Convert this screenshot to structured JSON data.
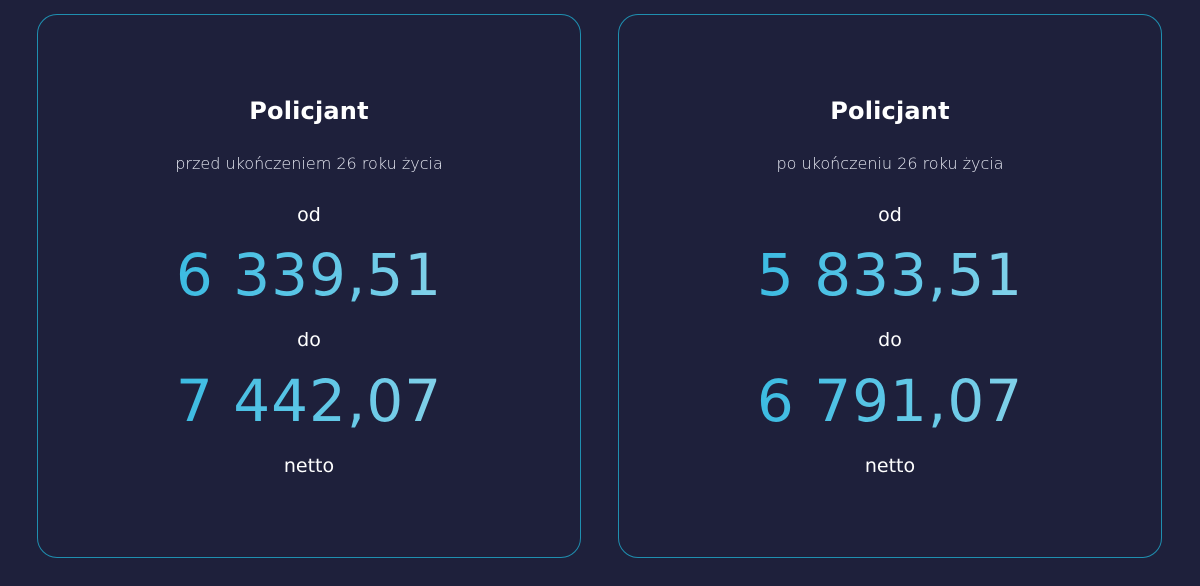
{
  "cards": [
    {
      "title": "Policjant",
      "subtitle": "przed ukończeniem 26 roku życia",
      "from_label": "od",
      "from_amount": "6 339,51",
      "to_label": "do",
      "to_amount": "7 442,07",
      "net_label": "netto"
    },
    {
      "title": "Policjant",
      "subtitle": "po ukończeniu 26 roku życia",
      "from_label": "od",
      "from_amount": "5 833,51",
      "to_label": "do",
      "to_amount": "6 791,07",
      "net_label": "netto"
    }
  ],
  "colors": {
    "background": "#1e203b",
    "card_border": "#1f8fb0",
    "text": "#ffffff",
    "amount_gradient_start": "#1ab0de",
    "amount_gradient_end": "#a9dcec"
  }
}
